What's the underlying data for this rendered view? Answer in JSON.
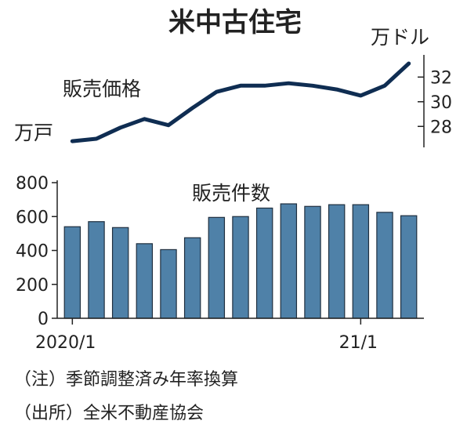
{
  "chart_data": [
    {
      "type": "line",
      "title": "米中古住宅",
      "series_label": "販売価格",
      "y_unit_label": "万ドル",
      "x_unit_label": "万戸",
      "yticks": [
        28,
        30,
        32
      ],
      "ylim": [
        26.3,
        33.8
      ],
      "categories": [
        "2020/1",
        "2020/2",
        "2020/3",
        "2020/4",
        "2020/5",
        "2020/6",
        "2020/7",
        "2020/8",
        "2020/9",
        "2020/10",
        "2020/11",
        "2020/12",
        "2021/1",
        "2021/2",
        "2021/3"
      ],
      "values": [
        26.8,
        27.0,
        27.9,
        28.6,
        28.1,
        29.5,
        30.8,
        31.3,
        31.3,
        31.5,
        31.3,
        31.0,
        30.5,
        31.3,
        33.1
      ],
      "line_color": "#0f2d52"
    },
    {
      "type": "bar",
      "series_label": "販売件数",
      "ylim": [
        0,
        800
      ],
      "yticks": [
        0,
        200,
        400,
        600,
        800
      ],
      "x_tick_labels": [
        "2020/1",
        "21/1"
      ],
      "categories": [
        "2020/1",
        "2020/2",
        "2020/3",
        "2020/4",
        "2020/5",
        "2020/6",
        "2020/7",
        "2020/8",
        "2020/9",
        "2020/10",
        "2020/11",
        "2020/12",
        "2021/1",
        "2021/2",
        "2021/3"
      ],
      "values": [
        540,
        570,
        535,
        440,
        405,
        475,
        595,
        600,
        650,
        675,
        660,
        670,
        670,
        625,
        605
      ],
      "bar_color": "#4f81a8"
    }
  ],
  "notes": {
    "note1": "（注）季節調整済み年率換算",
    "note2": "（出所）全米不動産協会"
  }
}
